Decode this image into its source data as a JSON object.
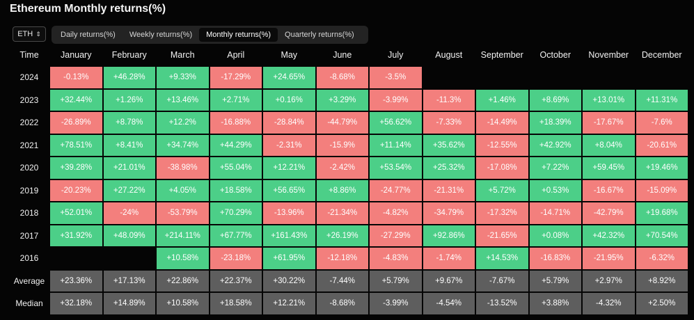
{
  "title": "Ethereum Monthly returns(%)",
  "asset_selector": {
    "value": "ETH",
    "icon": "chevron-up-down-icon"
  },
  "tabs": [
    {
      "label": "Daily returns(%)",
      "active": false
    },
    {
      "label": "Weekly returns(%)",
      "active": false
    },
    {
      "label": "Monthly returns(%)",
      "active": true
    },
    {
      "label": "Quarterly returns(%)",
      "active": false
    }
  ],
  "colors": {
    "positive": "#4ccf88",
    "negative": "#f37f7d",
    "stat": "#5e5e5e",
    "background": "#050505"
  },
  "table": {
    "headers": [
      "Time",
      "January",
      "February",
      "March",
      "April",
      "May",
      "June",
      "July",
      "August",
      "September",
      "October",
      "November",
      "December"
    ],
    "rows": [
      {
        "label": "2024",
        "type": "year",
        "values": [
          "-0.13%",
          "+46.28%",
          "+9.33%",
          "-17.29%",
          "+24.65%",
          "-8.68%",
          "-3.5%",
          "",
          "",
          "",
          "",
          ""
        ]
      },
      {
        "label": "2023",
        "type": "year",
        "values": [
          "+32.44%",
          "+1.26%",
          "+13.46%",
          "+2.71%",
          "+0.16%",
          "+3.29%",
          "-3.99%",
          "-11.3%",
          "+1.46%",
          "+8.69%",
          "+13.01%",
          "+11.31%"
        ]
      },
      {
        "label": "2022",
        "type": "year",
        "values": [
          "-26.89%",
          "+8.78%",
          "+12.2%",
          "-16.88%",
          "-28.84%",
          "-44.79%",
          "+56.62%",
          "-7.33%",
          "-14.49%",
          "+18.39%",
          "-17.67%",
          "-7.6%"
        ]
      },
      {
        "label": "2021",
        "type": "year",
        "values": [
          "+78.51%",
          "+8.41%",
          "+34.74%",
          "+44.29%",
          "-2.31%",
          "-15.9%",
          "+11.14%",
          "+35.62%",
          "-12.55%",
          "+42.92%",
          "+8.04%",
          "-20.61%"
        ]
      },
      {
        "label": "2020",
        "type": "year",
        "values": [
          "+39.28%",
          "+21.01%",
          "-38.98%",
          "+55.04%",
          "+12.21%",
          "-2.42%",
          "+53.54%",
          "+25.32%",
          "-17.08%",
          "+7.22%",
          "+59.45%",
          "+19.46%"
        ]
      },
      {
        "label": "2019",
        "type": "year",
        "values": [
          "-20.23%",
          "+27.22%",
          "+4.05%",
          "+18.58%",
          "+56.65%",
          "+8.86%",
          "-24.77%",
          "-21.31%",
          "+5.72%",
          "+0.53%",
          "-16.67%",
          "-15.09%"
        ]
      },
      {
        "label": "2018",
        "type": "year",
        "values": [
          "+52.01%",
          "-24%",
          "-53.79%",
          "+70.29%",
          "-13.96%",
          "-21.34%",
          "-4.82%",
          "-34.79%",
          "-17.32%",
          "-14.71%",
          "-42.79%",
          "+19.68%"
        ]
      },
      {
        "label": "2017",
        "type": "year",
        "values": [
          "+31.92%",
          "+48.09%",
          "+214.11%",
          "+67.77%",
          "+161.43%",
          "+26.19%",
          "-27.29%",
          "+92.86%",
          "-21.65%",
          "+0.08%",
          "+42.32%",
          "+70.54%"
        ]
      },
      {
        "label": "2016",
        "type": "year",
        "values": [
          "",
          "",
          "+10.58%",
          "-23.18%",
          "+61.95%",
          "-12.18%",
          "-4.83%",
          "-1.74%",
          "+14.53%",
          "-16.83%",
          "-21.95%",
          "-6.32%"
        ]
      },
      {
        "label": "Average",
        "type": "stat",
        "values": [
          "+23.36%",
          "+17.13%",
          "+22.86%",
          "+22.37%",
          "+30.22%",
          "-7.44%",
          "+5.79%",
          "+9.67%",
          "-7.67%",
          "+5.79%",
          "+2.97%",
          "+8.92%"
        ]
      },
      {
        "label": "Median",
        "type": "stat",
        "values": [
          "+32.18%",
          "+14.89%",
          "+10.58%",
          "+18.58%",
          "+12.21%",
          "-8.68%",
          "-3.99%",
          "-4.54%",
          "-13.52%",
          "+3.88%",
          "-4.32%",
          "+2.50%"
        ]
      }
    ]
  }
}
